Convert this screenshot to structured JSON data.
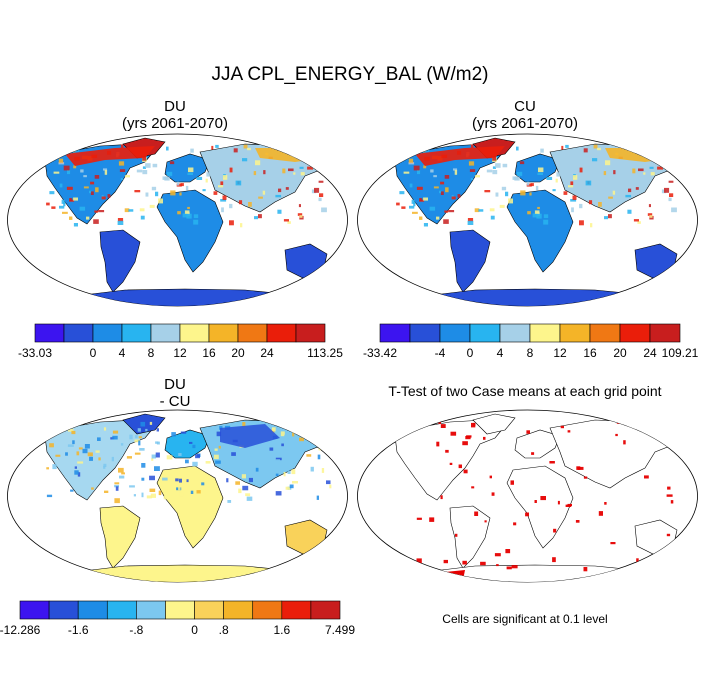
{
  "figure": {
    "title": "JJA CPL_ENERGY_BAL (W/m2)"
  },
  "panels": [
    {
      "id": "du",
      "title_line1": "DU",
      "title_line2": "(yrs 2061-2070)",
      "colorbar_labels": [
        "-33.03",
        "0",
        "4",
        "8",
        "12",
        "16",
        "20",
        "24",
        "113.25"
      ],
      "colorbar_colors": [
        "#3c14f0",
        "#2850d8",
        "#1e8ce6",
        "#28b4f0",
        "#a6d0e8",
        "#fdf58c",
        "#f4b428",
        "#f07814",
        "#ea1e0a",
        "#c81e1e"
      ]
    },
    {
      "id": "cu",
      "title_line1": "CU",
      "title_line2": "(yrs 2061-2070)",
      "colorbar_labels": [
        "-33.42",
        "-4",
        "0",
        "4",
        "8",
        "12",
        "16",
        "20",
        "24",
        "109.21"
      ],
      "colorbar_colors": [
        "#3c14f0",
        "#2850d8",
        "#1e8ce6",
        "#28b4f0",
        "#a6d0e8",
        "#fdf58c",
        "#f4b428",
        "#f07814",
        "#ea1e0a",
        "#c81e1e"
      ]
    },
    {
      "id": "diff",
      "title_line1": "DU",
      "title_line2": "- CU",
      "colorbar_labels": [
        "-12.286",
        "-1.6",
        "-.8",
        "0",
        ".8",
        "1.6",
        "7.499"
      ],
      "colorbar_colors": [
        "#3c14f0",
        "#2850d8",
        "#1e8ce6",
        "#28b4f0",
        "#7cc8f0",
        "#fdf58c",
        "#f9d25a",
        "#f4b428",
        "#f07814",
        "#ea1e0a",
        "#c81e1e"
      ]
    },
    {
      "id": "ttest",
      "title_line1": "T-Test of two Case means at each grid point",
      "note": "Cells are significant at 0.1 level"
    }
  ]
}
